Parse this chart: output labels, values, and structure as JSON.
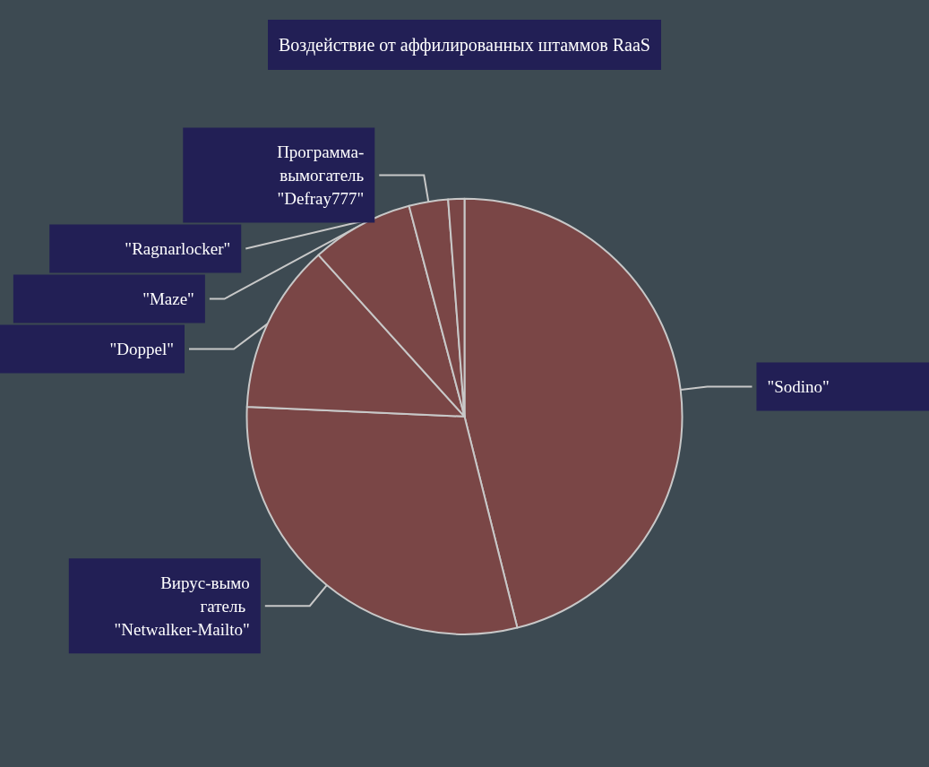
{
  "chart_data": {
    "type": "pie",
    "title": "Воздействие от аффилированных штаммов RaaS",
    "categories": [
      "\"Sodino\"",
      "Вирус-вымогатель \"Netwalker-Mailto\"",
      "\"Doppel\"",
      "\"Maze\"",
      "Программа-вымогатель \"Defray777\"",
      "\"Ragnarlocker\""
    ],
    "values": [
      46.1,
      29.6,
      12.6,
      7.6,
      2.9,
      1.2
    ],
    "colors": [
      "#7a4646",
      "#7a4646",
      "#7a4646",
      "#7a4646",
      "#7a4646",
      "#7a4646"
    ],
    "legend": false
  }
}
